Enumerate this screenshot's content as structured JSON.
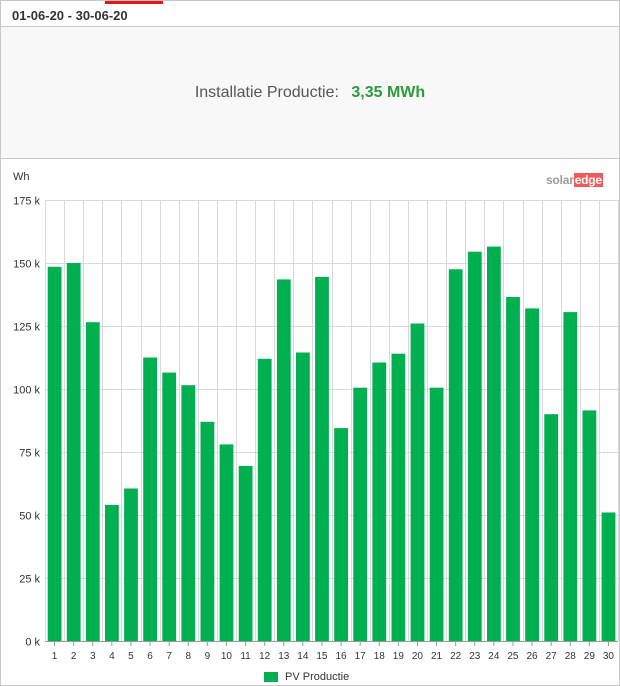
{
  "header": {
    "date_range": "01-06-20 - 30-06-20"
  },
  "summary": {
    "label": "Installatie Productie:",
    "value": "3,35 MWh"
  },
  "branding": {
    "logo_left": "solar",
    "logo_right": "edge"
  },
  "colors": {
    "bar": "#00b050",
    "value": "#2e9a3e",
    "accent": "#e8141b"
  },
  "chart_data": {
    "type": "bar",
    "unit": "Wh",
    "categories": [
      "1",
      "2",
      "3",
      "4",
      "5",
      "6",
      "7",
      "8",
      "9",
      "10",
      "11",
      "12",
      "13",
      "14",
      "15",
      "16",
      "17",
      "18",
      "19",
      "20",
      "21",
      "22",
      "23",
      "24",
      "25",
      "26",
      "27",
      "28",
      "29",
      "30"
    ],
    "series": [
      {
        "name": "PV Productie",
        "values": [
          148500,
          150000,
          126500,
          54000,
          60500,
          112500,
          106500,
          101500,
          87000,
          78000,
          69500,
          112000,
          143500,
          114500,
          144500,
          84500,
          100500,
          110500,
          114000,
          126000,
          100500,
          147500,
          154500,
          156500,
          136500,
          132000,
          90000,
          130500,
          91500,
          51000
        ]
      }
    ],
    "ylim": [
      0,
      175000
    ],
    "yticks": [
      0,
      25000,
      50000,
      75000,
      100000,
      125000,
      150000,
      175000
    ],
    "ytick_labels": [
      "0 k",
      "25 k",
      "50 k",
      "75 k",
      "100 k",
      "125 k",
      "150 k",
      "175 k"
    ],
    "grid": true,
    "legend": "bottom-center"
  }
}
